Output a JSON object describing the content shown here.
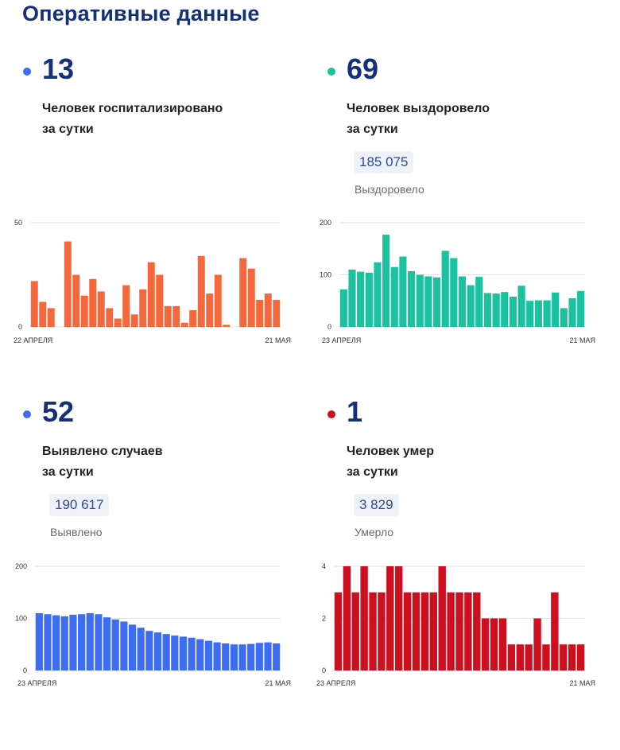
{
  "page_title": "Оперативные данные",
  "panels": [
    {
      "value": "13",
      "label_line1": "Человек госпитализировано",
      "label_line2": "за сутки",
      "color": "#f4683c"
    },
    {
      "value": "69",
      "label_line1": "Человек выздоровело",
      "label_line2": "за сутки",
      "total": "185 075",
      "total_caption": "Выздоровело",
      "color": "#1cc2a0"
    },
    {
      "value": "52",
      "label_line1": "Выявлено случаев",
      "label_line2": "за сутки",
      "total": "190 617",
      "total_caption": "Выявлено",
      "color": "#3d6ef2"
    },
    {
      "value": "1",
      "label_line1": "Человек умер",
      "label_line2": "за сутки",
      "total": "3 829",
      "total_caption": "Умерло",
      "color": "#cc1020"
    }
  ],
  "chart_data": [
    {
      "type": "bar",
      "series_color": "#f4683c",
      "ylim": [
        0,
        50
      ],
      "yticks": [
        "0",
        "50"
      ],
      "x_start": "22 АПРЕЛЯ",
      "x_end": "21 МАЯ",
      "values": [
        22,
        12,
        9,
        null,
        41,
        25,
        15,
        23,
        17,
        9,
        4,
        20,
        6,
        18,
        31,
        25,
        10,
        10,
        2,
        8,
        34,
        16,
        25,
        1,
        null,
        33,
        28,
        13,
        16,
        13
      ]
    },
    {
      "type": "bar",
      "series_color": "#1cc2a0",
      "ylim": [
        0,
        200
      ],
      "yticks": [
        "0",
        "100",
        "200"
      ],
      "x_start": "23 АПРЕЛЯ",
      "x_end": "21 МАЯ",
      "values": [
        72,
        110,
        106,
        104,
        124,
        177,
        115,
        135,
        107,
        100,
        97,
        95,
        146,
        132,
        97,
        80,
        96,
        65,
        64,
        67,
        58,
        79,
        50,
        51,
        51,
        66,
        36,
        55,
        69
      ]
    },
    {
      "type": "bar",
      "series_color": "#3d6ef2",
      "ylim": [
        0,
        200
      ],
      "yticks": [
        "0",
        "100",
        "200"
      ],
      "x_start": "23 АПРЕЛЯ",
      "x_end": "21 МАЯ",
      "values": [
        110,
        108,
        106,
        104,
        107,
        108,
        110,
        108,
        102,
        98,
        94,
        88,
        82,
        76,
        73,
        70,
        67,
        65,
        63,
        60,
        57,
        54,
        52,
        50,
        50,
        51,
        53,
        54,
        52
      ]
    },
    {
      "type": "bar",
      "series_color": "#cc1020",
      "ylim": [
        0,
        4
      ],
      "yticks": [
        "0",
        "2",
        "4"
      ],
      "x_start": "23 АПРЕЛЯ",
      "x_end": "21 МАЯ",
      "values": [
        3,
        4,
        3,
        4,
        3,
        3,
        4,
        4,
        3,
        3,
        3,
        3,
        4,
        3,
        3,
        3,
        3,
        2,
        2,
        2,
        1,
        1,
        1,
        2,
        1,
        3,
        1,
        1,
        1
      ]
    }
  ]
}
